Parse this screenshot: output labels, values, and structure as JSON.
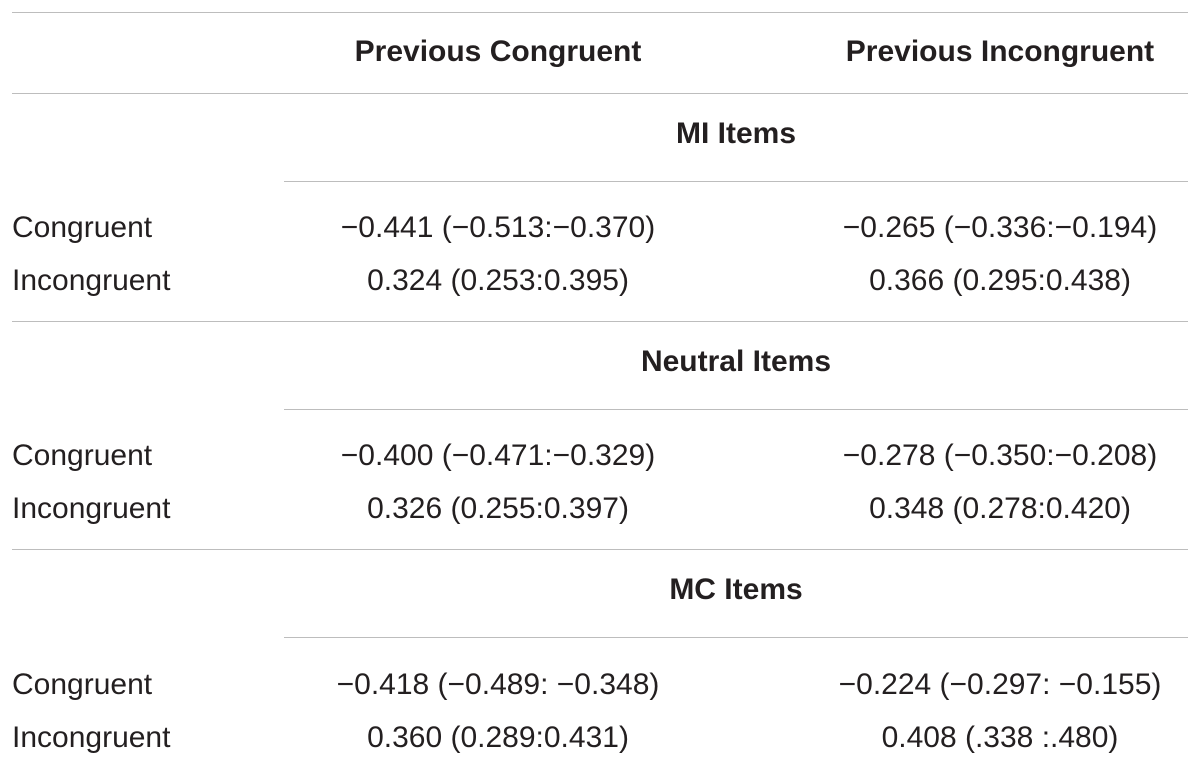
{
  "header": {
    "col1": "Previous Congruent",
    "col2": "Previous Incongruent"
  },
  "sections": [
    {
      "title": "MI Items",
      "rows": [
        {
          "label": "Congruent",
          "col1": "−0.441 (−0.513:−0.370)",
          "col2": "−0.265 (−0.336:−0.194)"
        },
        {
          "label": "Incongruent",
          "col1": "0.324 (0.253:0.395)",
          "col2": "0.366 (0.295:0.438)"
        }
      ]
    },
    {
      "title": "Neutral Items",
      "rows": [
        {
          "label": "Congruent",
          "col1": "−0.400 (−0.471:−0.329)",
          "col2": "−0.278 (−0.350:−0.208)"
        },
        {
          "label": "Incongruent",
          "col1": "0.326 (0.255:0.397)",
          "col2": "0.348 (0.278:0.420)"
        }
      ]
    },
    {
      "title": "MC Items",
      "rows": [
        {
          "label": "Congruent",
          "col1": "−0.418 (−0.489: −0.348)",
          "col2": "−0.224 (−0.297: −0.155)"
        },
        {
          "label": "Incongruent",
          "col1": "0.360 (0.289:0.431)",
          "col2": "0.408 (.338 :.480)"
        }
      ]
    }
  ]
}
